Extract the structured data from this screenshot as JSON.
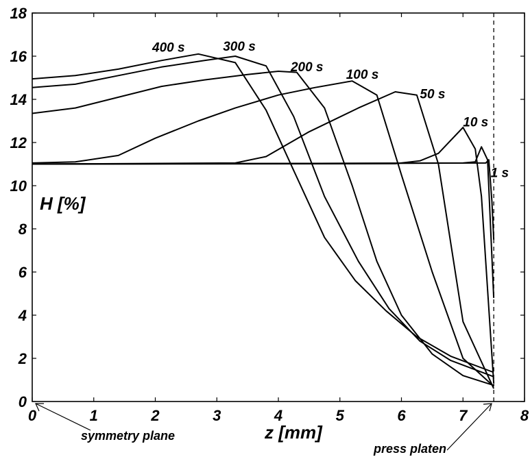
{
  "chart_data": {
    "type": "line",
    "xlabel": "z [mm]",
    "ylabel": "H [%]",
    "xlim": [
      0,
      8
    ],
    "ylim": [
      0,
      18
    ],
    "xticks": [
      "0",
      "1",
      "2",
      "3",
      "4",
      "5",
      "6",
      "7",
      "8"
    ],
    "yticks": [
      "0",
      "2",
      "4",
      "6",
      "8",
      "10",
      "12",
      "14",
      "16",
      "18"
    ],
    "grid": false,
    "legend": "none",
    "vertical_line": {
      "x": 7.5,
      "style": "dashed"
    },
    "annotations": [
      {
        "text": "symmetry plane",
        "points_to": [
          0,
          0
        ]
      },
      {
        "text": "press platen",
        "points_to": [
          7.5,
          0
        ]
      }
    ],
    "series": [
      {
        "label": "1 s",
        "x": [
          0,
          7.37,
          7.42,
          7.47,
          7.5
        ],
        "y": [
          11.0,
          11.05,
          11.2,
          9.3,
          7.5
        ]
      },
      {
        "label": "10 s",
        "x": [
          0,
          7.0,
          7.2,
          7.3,
          7.4,
          7.5
        ],
        "y": [
          11.0,
          11.05,
          11.1,
          11.8,
          11.2,
          4.8
        ]
      },
      {
        "label": "50 s",
        "x": [
          0,
          5.9,
          6.3,
          6.6,
          7.0,
          7.2,
          7.3,
          7.5
        ],
        "y": [
          11.0,
          11.02,
          11.15,
          11.5,
          12.7,
          11.7,
          9.5,
          0.85
        ]
      },
      {
        "label": "100 s",
        "x": [
          0,
          3.3,
          3.8,
          4.5,
          5.3,
          5.9,
          6.25,
          6.6,
          7.0,
          7.5
        ],
        "y": [
          11.0,
          11.05,
          11.35,
          12.5,
          13.6,
          14.35,
          14.2,
          11.0,
          3.7,
          0.6
        ]
      },
      {
        "label": "200 s",
        "x": [
          0,
          0.7,
          1.4,
          2.0,
          2.7,
          3.3,
          4.0,
          4.6,
          5.2,
          5.6,
          6.0,
          6.5,
          7.0,
          7.5
        ],
        "y": [
          11.05,
          11.1,
          11.4,
          12.2,
          13.0,
          13.6,
          14.2,
          14.55,
          14.85,
          14.2,
          10.5,
          6.0,
          2.0,
          0.7
        ]
      },
      {
        "label": "300 s",
        "x": [
          0,
          0.7,
          1.4,
          2.1,
          2.8,
          3.5,
          4.0,
          4.3,
          4.75,
          5.2,
          5.6,
          6.0,
          6.5,
          7.0,
          7.5
        ],
        "y": [
          13.35,
          13.6,
          14.1,
          14.6,
          14.9,
          15.15,
          15.3,
          15.25,
          13.6,
          10.0,
          6.5,
          4.0,
          2.2,
          1.2,
          0.75
        ]
      },
      {
        "label": "400 s",
        "x": [
          0,
          0.7,
          1.4,
          2.1,
          2.8,
          3.3,
          3.8,
          4.25,
          4.75,
          5.3,
          5.8,
          6.3,
          6.8,
          7.5
        ],
        "y": [
          14.55,
          14.7,
          15.1,
          15.5,
          15.8,
          16.0,
          15.55,
          13.2,
          9.5,
          6.5,
          4.3,
          2.8,
          1.9,
          1.15
        ]
      },
      {
        "label": "",
        "x": [
          0,
          0.7,
          1.4,
          2.1,
          2.7,
          3.3,
          3.8,
          4.25,
          4.75,
          5.25,
          5.75,
          6.25,
          6.8,
          7.5
        ],
        "y": [
          14.95,
          15.1,
          15.4,
          15.8,
          16.1,
          15.7,
          13.5,
          10.7,
          7.6,
          5.6,
          4.2,
          3.0,
          2.1,
          1.35
        ]
      }
    ],
    "curve_labels": [
      {
        "text": "400 s",
        "x": 1.95,
        "y": 16.2
      },
      {
        "text": "300 s",
        "x": 3.1,
        "y": 16.25
      },
      {
        "text": "200 s",
        "x": 4.2,
        "y": 15.3
      },
      {
        "text": "100 s",
        "x": 5.1,
        "y": 14.95
      },
      {
        "text": "50 s",
        "x": 6.3,
        "y": 14.05
      },
      {
        "text": "10 s",
        "x": 7.0,
        "y": 12.75
      },
      {
        "text": "1 s",
        "x": 7.45,
        "y": 10.4
      }
    ]
  }
}
